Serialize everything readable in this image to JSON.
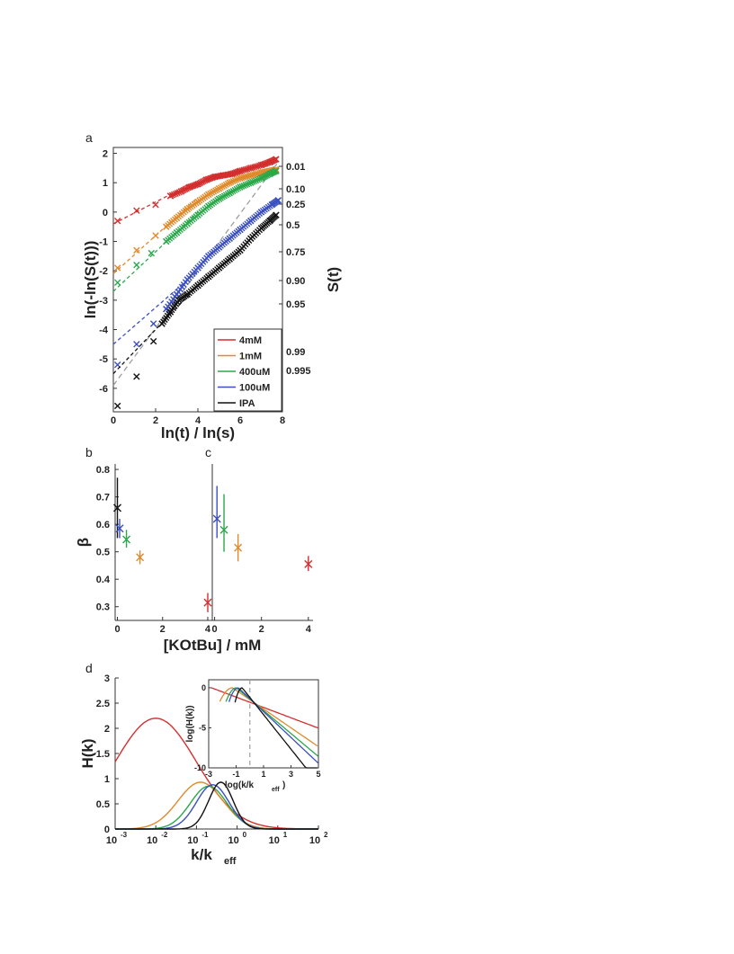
{
  "colors": {
    "4mM": "#d32f2f",
    "1mM": "#e08a2c",
    "400uM": "#2aa84a",
    "100uM": "#3b4fc0",
    "IPA": "#111111",
    "ref": "#9e9e9e"
  },
  "panels": {
    "a": "a",
    "b": "b",
    "c": "c",
    "d": "d"
  },
  "chart_data": [
    {
      "panel": "a",
      "type": "scatter",
      "xlabel": "ln(t) / ln(s)",
      "ylabel": "ln(-ln(S(t)))",
      "ylabel_right": "S(t)",
      "xlim": [
        0,
        8
      ],
      "ylim": [
        -6.8,
        2.2
      ],
      "xticks": [
        0,
        2,
        4,
        6,
        8
      ],
      "yticks": [
        2,
        1,
        0,
        -1,
        -2,
        -3,
        -4,
        -5,
        -6
      ],
      "right_ticks": [
        "0.01",
        "0.10",
        "0.25",
        "0.5",
        "0.75",
        "0.90",
        "0.95",
        "0.99",
        "0.995"
      ],
      "legend": {
        "position": "bottom-right",
        "entries": [
          "4mM",
          "1mM",
          "400uM",
          "100uM",
          "IPA"
        ]
      },
      "series": [
        {
          "name": "4mM",
          "x": [
            0.2,
            1.1,
            2.0,
            2.7,
            3.2,
            3.6,
            4.0,
            4.4,
            4.8,
            5.2,
            5.6,
            6.0,
            6.5,
            7.0,
            7.4,
            7.7
          ],
          "y": [
            -0.3,
            0.05,
            0.25,
            0.55,
            0.7,
            0.85,
            0.95,
            1.1,
            1.2,
            1.25,
            1.3,
            1.4,
            1.5,
            1.6,
            1.7,
            1.8
          ],
          "fit": [
            [
              0,
              -0.4
            ],
            [
              3.5,
              0.9
            ]
          ]
        },
        {
          "name": "1mM",
          "x": [
            0.2,
            1.1,
            2.0,
            2.5,
            3.0,
            3.5,
            4.0,
            4.5,
            5.0,
            5.5,
            6.0,
            6.5,
            7.0,
            7.4,
            7.7
          ],
          "y": [
            -1.9,
            -1.3,
            -0.8,
            -0.5,
            -0.2,
            0.1,
            0.35,
            0.6,
            0.8,
            1.0,
            1.15,
            1.25,
            1.35,
            1.4,
            1.45
          ],
          "fit": [
            [
              0,
              -2.1
            ],
            [
              4.0,
              0.5
            ]
          ]
        },
        {
          "name": "400uM",
          "x": [
            0.2,
            1.1,
            1.8,
            2.5,
            3.0,
            3.5,
            4.0,
            4.5,
            5.0,
            5.5,
            6.0,
            6.5,
            7.0,
            7.4,
            7.7
          ],
          "y": [
            -2.4,
            -1.8,
            -1.4,
            -1.0,
            -0.7,
            -0.4,
            -0.1,
            0.2,
            0.45,
            0.65,
            0.85,
            1.0,
            1.15,
            1.3,
            1.4
          ],
          "fit": [
            [
              0,
              -2.7
            ],
            [
              4.0,
              0.0
            ]
          ]
        },
        {
          "name": "100uM",
          "x": [
            0.2,
            1.1,
            1.9,
            2.5,
            3.0,
            3.5,
            4.0,
            4.5,
            5.0,
            5.5,
            6.0,
            6.5,
            7.0,
            7.5,
            7.8
          ],
          "y": [
            -5.2,
            -4.5,
            -3.8,
            -3.3,
            -2.8,
            -2.3,
            -1.9,
            -1.5,
            -1.2,
            -0.9,
            -0.6,
            -0.3,
            0.0,
            0.25,
            0.4
          ],
          "fit": [
            [
              0,
              -4.5
            ],
            [
              4.0,
              -2.0
            ]
          ]
        },
        {
          "name": "IPA",
          "x": [
            0.2,
            1.1,
            1.9,
            2.3,
            2.7,
            3.1,
            3.5,
            4.0,
            4.5,
            5.0,
            5.5,
            6.0,
            6.5,
            7.0,
            7.4,
            7.7
          ],
          "y": [
            -6.6,
            -5.6,
            -4.4,
            -3.8,
            -3.4,
            -3.0,
            -2.8,
            -2.5,
            -2.2,
            -1.9,
            -1.6,
            -1.3,
            -0.9,
            -0.55,
            -0.3,
            -0.1
          ],
          "fit": [
            [
              0,
              -5.5
            ],
            [
              4.0,
              -2.5
            ]
          ]
        }
      ],
      "reference_line": [
        [
          0,
          -5.9
        ],
        [
          7.8,
          1.7
        ]
      ]
    },
    {
      "panel": "b",
      "type": "scatter",
      "xlabel": "[KOtBu] / mM",
      "ylabel": "β",
      "xlim": [
        -0.1,
        4.2
      ],
      "ylim": [
        0.25,
        0.82
      ],
      "xticks": [
        0,
        2,
        4
      ],
      "yticks": [
        0.8,
        0.7,
        0.6,
        0.5,
        0.4,
        0.3
      ],
      "points": [
        {
          "series": "IPA",
          "x": 0.0,
          "y": 0.66,
          "lo": 0.55,
          "hi": 0.77
        },
        {
          "series": "100uM",
          "x": 0.1,
          "y": 0.585,
          "lo": 0.55,
          "hi": 0.62
        },
        {
          "series": "400uM",
          "x": 0.4,
          "y": 0.545,
          "lo": 0.515,
          "hi": 0.58
        },
        {
          "series": "1mM",
          "x": 1.0,
          "y": 0.48,
          "lo": 0.455,
          "hi": 0.505
        },
        {
          "series": "4mM",
          "x": 4.0,
          "y": 0.315,
          "lo": 0.28,
          "hi": 0.35
        }
      ]
    },
    {
      "panel": "c",
      "type": "scatter",
      "xlim": [
        -0.1,
        4.2
      ],
      "ylim": [
        0.25,
        0.82
      ],
      "xticks": [
        0,
        2,
        4
      ],
      "points": [
        {
          "series": "100uM",
          "x": 0.1,
          "y": 0.62,
          "lo": 0.55,
          "hi": 0.74
        },
        {
          "series": "400uM",
          "x": 0.4,
          "y": 0.58,
          "lo": 0.5,
          "hi": 0.71
        },
        {
          "series": "1mM",
          "x": 1.0,
          "y": 0.515,
          "lo": 0.465,
          "hi": 0.565
        },
        {
          "series": "4mM",
          "x": 4.0,
          "y": 0.455,
          "lo": 0.43,
          "hi": 0.485
        }
      ]
    },
    {
      "panel": "d",
      "type": "line",
      "xlabel": "k/k",
      "xlabel_sub": "eff",
      "ylabel": "H(k)",
      "xscale": "log",
      "xlim_log10": [
        -3,
        2
      ],
      "ylim": [
        0,
        3
      ],
      "xticks_log10": [
        -3,
        -2,
        -1,
        0,
        1,
        2
      ],
      "yticks": [
        0,
        0.5,
        1,
        1.5,
        2,
        2.5,
        3
      ],
      "series": [
        {
          "name": "4mM",
          "peak_log10": -2.0,
          "peak": 2.2,
          "width": 1.0
        },
        {
          "name": "1mM",
          "peak_log10": -0.9,
          "peak": 0.93,
          "width": 0.55
        },
        {
          "name": "400uM",
          "peak_log10": -0.7,
          "peak": 0.85,
          "width": 0.45
        },
        {
          "name": "100uM",
          "peak_log10": -0.6,
          "peak": 0.88,
          "width": 0.4
        },
        {
          "name": "IPA",
          "peak_log10": -0.4,
          "peak": 0.93,
          "width": 0.3
        }
      ],
      "inset": {
        "xlabel": "log(k/k",
        "xlabel_sub": "eff",
        "xlabel_end": ")",
        "ylabel": "log(H(k))",
        "xlim": [
          -3,
          5
        ],
        "ylim": [
          -10,
          1
        ],
        "xticks": [
          -3,
          -1,
          1,
          3,
          5
        ],
        "yticks": [
          0,
          -5,
          -10
        ],
        "dashed_x": 0
      }
    }
  ]
}
